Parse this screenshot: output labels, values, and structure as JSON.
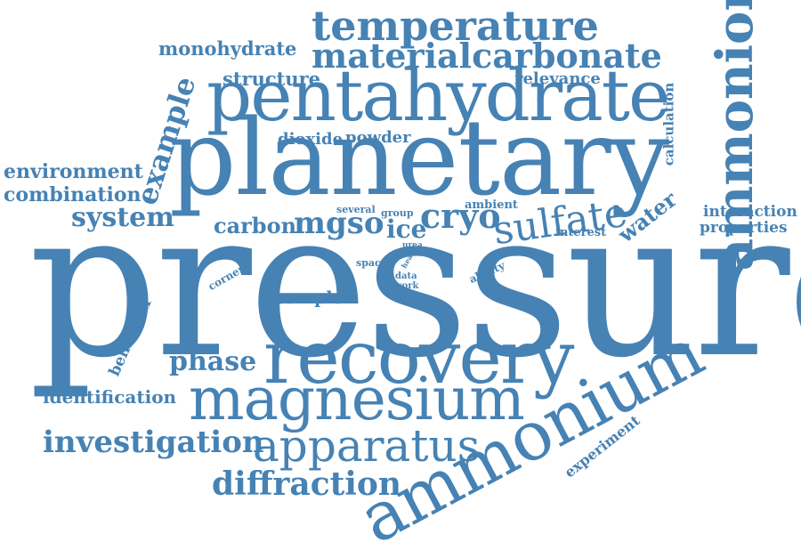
{
  "color": "#4682b4",
  "words": {
    "pressure": "pressure",
    "planetary": "planetary",
    "pentahydrate": "pentahydrate",
    "recovery": "recovery",
    "magnesium": "magnesium",
    "ammonium": "ammonium",
    "ammonion": "ammonion",
    "temperature": "temperature",
    "materialcarbonate": "materialcarbonate",
    "apparatus": "apparatus",
    "sulfate": "sulfate",
    "cryo": "cryo",
    "diffraction": "diffraction",
    "investigation": "investigation",
    "monohydrate": "monohydrate",
    "example": "example",
    "structure": "structure",
    "relevance": "relevance",
    "dioxide": "dioxide",
    "powder": "powder",
    "environment": "environment",
    "combination": "combination",
    "system": "system",
    "carbon": "carbon",
    "mgso": "mgso",
    "ice": "ice",
    "several": "several",
    "group": "group",
    "ambient": "ambient",
    "water": "water",
    "calculation": "calculation",
    "interaction": "interaction",
    "properties": "properties",
    "interest": "interest",
    "urea": "urea",
    "space": "space",
    "data": "data",
    "work": "work",
    "ability": "ability",
    "corner": "corner",
    "sample": "sample",
    "phase": "phase",
    "behaviour": "behaviour",
    "identification": "identification",
    "experiment": "experiment",
    "heat": "heat"
  }
}
